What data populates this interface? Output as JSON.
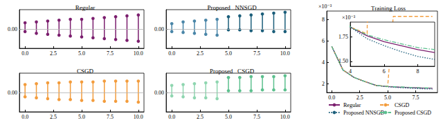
{
  "chart_data": [
    {
      "type": "stem",
      "title": "Regular",
      "marker": "circle",
      "grid": true,
      "x": [
        0,
        1,
        2,
        3,
        4,
        5,
        6,
        7,
        8,
        9,
        10
      ],
      "high": [
        0.07,
        0.08,
        0.09,
        0.1,
        0.11,
        0.11,
        0.12,
        0.13,
        0.14,
        0.15,
        0.16
      ],
      "low": [
        -0.03,
        -0.05,
        -0.06,
        -0.07,
        -0.08,
        -0.09,
        -0.1,
        -0.11,
        -0.12,
        -0.13,
        -0.14
      ],
      "colors": [
        "#7b1e6e",
        "#7b1e6e",
        "#7b1e6e",
        "#7b1e6e",
        "#7b1e6e",
        "#7b1e6e",
        "#7b1e6e",
        "#7b1e6e",
        "#7b1e6e",
        "#7b1e6e",
        "#7b1e6e"
      ],
      "xlim": [
        -0.5,
        10.5
      ],
      "xticks": [
        {
          "value": 0,
          "label": "0.0"
        },
        {
          "value": 2.5,
          "label": "2.5"
        },
        {
          "value": 5,
          "label": "5.0"
        },
        {
          "value": 7.5,
          "label": "7.5"
        },
        {
          "value": 10,
          "label": "10.0"
        }
      ],
      "ylim": [
        -0.22,
        0.22
      ],
      "yticks": [
        {
          "value": 0,
          "label": "0.00"
        }
      ]
    },
    {
      "type": "stem",
      "title": "Proposed   NNSGD",
      "marker": "circle",
      "grid": true,
      "x": [
        0,
        1,
        2,
        3,
        4,
        5,
        6,
        7,
        8,
        9,
        10
      ],
      "high": [
        0.06,
        0.08,
        0.09,
        0.1,
        0.11,
        0.14,
        0.15,
        0.16,
        0.17,
        0.18,
        0.19
      ],
      "low": [
        -0.03,
        -0.04,
        -0.05,
        -0.06,
        -0.07,
        -0.01,
        -0.01,
        -0.02,
        -0.02,
        -0.03,
        -0.03
      ],
      "colors": [
        "#4a86a8",
        "#4a86a8",
        "#4a86a8",
        "#4a86a8",
        "#4a86a8",
        "#1b5e7a",
        "#1b5e7a",
        "#1b5e7a",
        "#1b5e7a",
        "#1b5e7a",
        "#1b5e7a"
      ],
      "xlim": [
        -0.5,
        10.5
      ],
      "xticks": [
        {
          "value": 0,
          "label": "0.0"
        },
        {
          "value": 2.5,
          "label": "2.5"
        },
        {
          "value": 5,
          "label": "5.0"
        },
        {
          "value": 7.5,
          "label": "7.5"
        },
        {
          "value": 10,
          "label": "10.0"
        }
      ],
      "ylim": [
        -0.22,
        0.22
      ],
      "yticks": [
        {
          "value": 0,
          "label": "0.00"
        }
      ]
    },
    {
      "type": "stem",
      "title": "CSGD",
      "marker": "circle",
      "grid": true,
      "x": [
        0,
        1,
        2,
        3,
        4,
        5,
        6,
        7,
        8,
        9,
        10
      ],
      "high": [
        0.09,
        0.1,
        0.11,
        0.11,
        0.12,
        0.12,
        0.12,
        0.13,
        0.13,
        0.13,
        0.13
      ],
      "low": [
        -0.05,
        -0.06,
        -0.07,
        -0.08,
        -0.08,
        -0.09,
        -0.09,
        -0.1,
        -0.1,
        -0.1,
        -0.11
      ],
      "colors": [
        "#f39c3c",
        "#f39c3c",
        "#f39c3c",
        "#f39c3c",
        "#f39c3c",
        "#f39c3c",
        "#f39c3c",
        "#f39c3c",
        "#f39c3c",
        "#f39c3c",
        "#f39c3c"
      ],
      "xlim": [
        -0.5,
        10.5
      ],
      "xticks": [
        {
          "value": 0,
          "label": "0.0"
        },
        {
          "value": 2.5,
          "label": "2.5"
        },
        {
          "value": 5,
          "label": "5.0"
        },
        {
          "value": 7.5,
          "label": "7.5"
        },
        {
          "value": 10,
          "label": "10.0"
        }
      ],
      "ylim": [
        -0.22,
        0.22
      ],
      "yticks": [
        {
          "value": 0,
          "label": "0.00"
        }
      ]
    },
    {
      "type": "stem",
      "title": "Proposed   CSGD",
      "marker": "circle",
      "grid": true,
      "x": [
        0,
        1,
        2,
        3,
        4,
        5,
        6,
        7,
        8,
        9,
        10
      ],
      "high": [
        0.08,
        0.09,
        0.1,
        0.11,
        0.12,
        0.17,
        0.17,
        0.18,
        0.18,
        0.18,
        0.19
      ],
      "low": [
        -0.04,
        -0.05,
        -0.06,
        -0.06,
        -0.07,
        0.02,
        0.02,
        0.02,
        0.03,
        0.03,
        0.03
      ],
      "colors": [
        "#8fd6b0",
        "#8fd6b0",
        "#8fd6b0",
        "#8fd6b0",
        "#8fd6b0",
        "#5cc08e",
        "#5cc08e",
        "#5cc08e",
        "#5cc08e",
        "#5cc08e",
        "#5cc08e"
      ],
      "xlim": [
        -0.5,
        10.5
      ],
      "xticks": [
        {
          "value": 0,
          "label": "0.0"
        },
        {
          "value": 2.5,
          "label": "2.5"
        },
        {
          "value": 5,
          "label": "5.0"
        },
        {
          "value": 7.5,
          "label": "7.5"
        },
        {
          "value": 10,
          "label": "10.0"
        }
      ],
      "ylim": [
        -0.22,
        0.22
      ],
      "yticks": [
        {
          "value": 0,
          "label": "0.00"
        }
      ]
    },
    {
      "type": "line",
      "title": "Training Loss",
      "ylabel": "×10⁻³",
      "legend": "bottom",
      "xlim": [
        -0.45,
        9.45
      ],
      "xticks": [
        {
          "value": 0,
          "label": "0.0"
        },
        {
          "value": 2.5,
          "label": "2.5"
        },
        {
          "value": 5,
          "label": "5.0"
        },
        {
          "value": 7.5,
          "label": "7.5"
        }
      ],
      "ylim": [
        1.2,
        8.8
      ],
      "yticks": [
        2,
        4,
        6,
        8
      ],
      "series": [
        {
          "name": "Regular",
          "color": "#7b1e6e",
          "line_style": "solid",
          "x": [
            0,
            1,
            2,
            3,
            4,
            5,
            6,
            7,
            8,
            9
          ],
          "values": [
            5.5,
            3.3,
            2.6,
            2.2,
            1.85,
            1.76,
            1.7,
            1.66,
            1.62,
            1.59
          ]
        },
        {
          "name": "CSGD",
          "color": "#f39c3c",
          "line_style": "dashed",
          "x": [
            0,
            1,
            2,
            3,
            4,
            5,
            5.5,
            6,
            7,
            8,
            9
          ],
          "values": [
            5.5,
            3.3,
            2.6,
            2.2,
            1.85,
            1.78,
            8.3,
            8.3,
            8.3,
            8.3,
            8.3
          ]
        },
        {
          "name": "Proposed NNSGD",
          "color": "#1b5e7a",
          "line_style": "dotted",
          "x": [
            0,
            1,
            2,
            3,
            4,
            5,
            6,
            7,
            8,
            9
          ],
          "values": [
            5.5,
            3.3,
            2.6,
            2.2,
            1.85,
            1.73,
            1.66,
            1.6,
            1.55,
            1.52
          ]
        },
        {
          "name": "Proposed CSGD",
          "color": "#5cc08e",
          "line_style": "dashdot",
          "x": [
            0,
            1,
            2,
            3,
            4,
            5,
            6,
            7,
            8,
            9
          ],
          "values": [
            5.5,
            3.3,
            2.6,
            2.2,
            1.85,
            1.77,
            1.72,
            1.68,
            1.64,
            1.62
          ]
        }
      ],
      "inset": {
        "ylabel": "×10⁻³",
        "xlim": [
          4,
          9
        ],
        "xticks": [
          4,
          6,
          8
        ],
        "ylim": [
          1.45,
          1.9
        ],
        "yticks": [
          {
            "value": 1.5,
            "label": "1.50"
          },
          {
            "value": 1.75,
            "label": "1.75"
          }
        ]
      }
    }
  ]
}
